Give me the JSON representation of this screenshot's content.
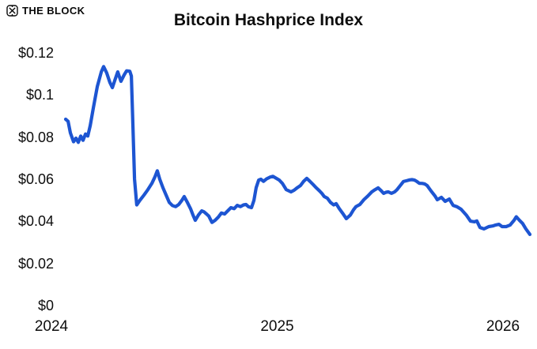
{
  "header": {
    "logo_text": "THE BLOCK"
  },
  "title": "Bitcoin Hashprice Index",
  "chart_data": {
    "type": "line",
    "title": "Bitcoin Hashprice Index",
    "xlabel": "",
    "ylabel": "",
    "x_unit": "decimal year",
    "y_unit": "USD per TH/s per day",
    "ylim": [
      0,
      0.12
    ],
    "xlim": [
      2023.77,
      2026.15
    ],
    "grid": false,
    "legend_position": "none",
    "line_color": "#1d55d2",
    "y_ticks": [
      {
        "label": "$0.12",
        "v": 0.12
      },
      {
        "label": "$0.1",
        "v": 0.1
      },
      {
        "label": "$0.08",
        "v": 0.08
      },
      {
        "label": "$0.06",
        "v": 0.06
      },
      {
        "label": "$0.04",
        "v": 0.04
      },
      {
        "label": "$0.02",
        "v": 0.02
      },
      {
        "label": "$0",
        "v": 0.0
      }
    ],
    "x_ticks": [
      {
        "label": "2024",
        "t": 2024
      },
      {
        "label": "2025",
        "t": 2025
      },
      {
        "label": "2026",
        "t": 2026
      }
    ],
    "series": [
      {
        "name": "Bitcoin Hashprice Index",
        "color": "#1d55d2",
        "points": [
          [
            2024.063,
            0.0885
          ],
          [
            2024.074,
            0.0875
          ],
          [
            2024.084,
            0.082
          ],
          [
            2024.098,
            0.0778
          ],
          [
            2024.109,
            0.0795
          ],
          [
            2024.119,
            0.0775
          ],
          [
            2024.13,
            0.0805
          ],
          [
            2024.14,
            0.0785
          ],
          [
            2024.151,
            0.0815
          ],
          [
            2024.161,
            0.0805
          ],
          [
            2024.172,
            0.0855
          ],
          [
            2024.186,
            0.094
          ],
          [
            2024.203,
            0.104
          ],
          [
            2024.221,
            0.111
          ],
          [
            2024.231,
            0.1135
          ],
          [
            2024.245,
            0.1105
          ],
          [
            2024.259,
            0.106
          ],
          [
            2024.27,
            0.1035
          ],
          [
            2024.284,
            0.108
          ],
          [
            2024.294,
            0.111
          ],
          [
            2024.308,
            0.1065
          ],
          [
            2024.322,
            0.1095
          ],
          [
            2024.333,
            0.1115
          ],
          [
            2024.347,
            0.1113
          ],
          [
            2024.354,
            0.109
          ],
          [
            2024.361,
            0.085
          ],
          [
            2024.368,
            0.06
          ],
          [
            2024.378,
            0.0478
          ],
          [
            2024.392,
            0.05
          ],
          [
            2024.41,
            0.0525
          ],
          [
            2024.427,
            0.055
          ],
          [
            2024.445,
            0.058
          ],
          [
            2024.459,
            0.0612
          ],
          [
            2024.469,
            0.064
          ],
          [
            2024.48,
            0.06
          ],
          [
            2024.494,
            0.056
          ],
          [
            2024.508,
            0.0525
          ],
          [
            2024.522,
            0.049
          ],
          [
            2024.536,
            0.0475
          ],
          [
            2024.55,
            0.047
          ],
          [
            2024.564,
            0.048
          ],
          [
            2024.578,
            0.05
          ],
          [
            2024.588,
            0.0518
          ],
          [
            2024.602,
            0.049
          ],
          [
            2024.616,
            0.046
          ],
          [
            2024.627,
            0.043
          ],
          [
            2024.637,
            0.0405
          ],
          [
            2024.651,
            0.043
          ],
          [
            2024.666,
            0.045
          ],
          [
            2024.676,
            0.0445
          ],
          [
            2024.687,
            0.0435
          ],
          [
            2024.697,
            0.0425
          ],
          [
            2024.711,
            0.0395
          ],
          [
            2024.725,
            0.0405
          ],
          [
            2024.739,
            0.042
          ],
          [
            2024.753,
            0.044
          ],
          [
            2024.767,
            0.0435
          ],
          [
            2024.781,
            0.045
          ],
          [
            2024.795,
            0.0465
          ],
          [
            2024.809,
            0.046
          ],
          [
            2024.823,
            0.0476
          ],
          [
            2024.837,
            0.047
          ],
          [
            2024.851,
            0.0478
          ],
          [
            2024.862,
            0.048
          ],
          [
            2024.872,
            0.047
          ],
          [
            2024.886,
            0.0465
          ],
          [
            2024.897,
            0.05
          ],
          [
            2024.907,
            0.056
          ],
          [
            2024.918,
            0.0596
          ],
          [
            2024.928,
            0.06
          ],
          [
            2024.939,
            0.059
          ],
          [
            2024.953,
            0.0602
          ],
          [
            2024.97,
            0.0611
          ],
          [
            2024.981,
            0.0614
          ],
          [
            2024.995,
            0.0605
          ],
          [
            2025.009,
            0.0596
          ],
          [
            2025.023,
            0.058
          ],
          [
            2025.04,
            0.0551
          ],
          [
            2025.061,
            0.054
          ],
          [
            2025.075,
            0.0548
          ],
          [
            2025.089,
            0.056
          ],
          [
            2025.103,
            0.057
          ],
          [
            2025.117,
            0.059
          ],
          [
            2025.131,
            0.0604
          ],
          [
            2025.145,
            0.059
          ],
          [
            2025.159,
            0.0575
          ],
          [
            2025.173,
            0.0559
          ],
          [
            2025.187,
            0.0545
          ],
          [
            2025.198,
            0.0533
          ],
          [
            2025.208,
            0.0518
          ],
          [
            2025.222,
            0.051
          ],
          [
            2025.236,
            0.049
          ],
          [
            2025.25,
            0.0478
          ],
          [
            2025.261,
            0.0484
          ],
          [
            2025.275,
            0.046
          ],
          [
            2025.289,
            0.044
          ],
          [
            2025.306,
            0.0413
          ],
          [
            2025.324,
            0.043
          ],
          [
            2025.338,
            0.0455
          ],
          [
            2025.349,
            0.047
          ],
          [
            2025.366,
            0.048
          ],
          [
            2025.384,
            0.0503
          ],
          [
            2025.401,
            0.052
          ],
          [
            2025.419,
            0.054
          ],
          [
            2025.433,
            0.055
          ],
          [
            2025.447,
            0.0559
          ],
          [
            2025.461,
            0.0545
          ],
          [
            2025.471,
            0.0533
          ],
          [
            2025.482,
            0.0538
          ],
          [
            2025.492,
            0.054
          ],
          [
            2025.506,
            0.0533
          ],
          [
            2025.52,
            0.054
          ],
          [
            2025.531,
            0.0551
          ],
          [
            2025.545,
            0.057
          ],
          [
            2025.559,
            0.0589
          ],
          [
            2025.573,
            0.0593
          ],
          [
            2025.587,
            0.0597
          ],
          [
            2025.597,
            0.0598
          ],
          [
            2025.608,
            0.0596
          ],
          [
            2025.618,
            0.059
          ],
          [
            2025.629,
            0.0581
          ],
          [
            2025.643,
            0.058
          ],
          [
            2025.653,
            0.0578
          ],
          [
            2025.664,
            0.057
          ],
          [
            2025.681,
            0.0545
          ],
          [
            2025.699,
            0.052
          ],
          [
            2025.709,
            0.0503
          ],
          [
            2025.727,
            0.0514
          ],
          [
            2025.744,
            0.0495
          ],
          [
            2025.762,
            0.0506
          ],
          [
            2025.779,
            0.0476
          ],
          [
            2025.797,
            0.0469
          ],
          [
            2025.814,
            0.0458
          ],
          [
            2025.839,
            0.0428
          ],
          [
            2025.856,
            0.0401
          ],
          [
            2025.874,
            0.0398
          ],
          [
            2025.884,
            0.0402
          ],
          [
            2025.898,
            0.0371
          ],
          [
            2025.916,
            0.0364
          ],
          [
            2025.937,
            0.0375
          ],
          [
            2025.954,
            0.0378
          ],
          [
            2025.968,
            0.0383
          ],
          [
            2025.982,
            0.0386
          ],
          [
            2025.996,
            0.0375
          ],
          [
            2026.014,
            0.0375
          ],
          [
            2026.031,
            0.0382
          ],
          [
            2026.049,
            0.0405
          ],
          [
            2026.059,
            0.0422
          ],
          [
            2026.073,
            0.0405
          ],
          [
            2026.087,
            0.039
          ],
          [
            2026.101,
            0.0365
          ],
          [
            2026.119,
            0.0338
          ]
        ]
      }
    ]
  }
}
